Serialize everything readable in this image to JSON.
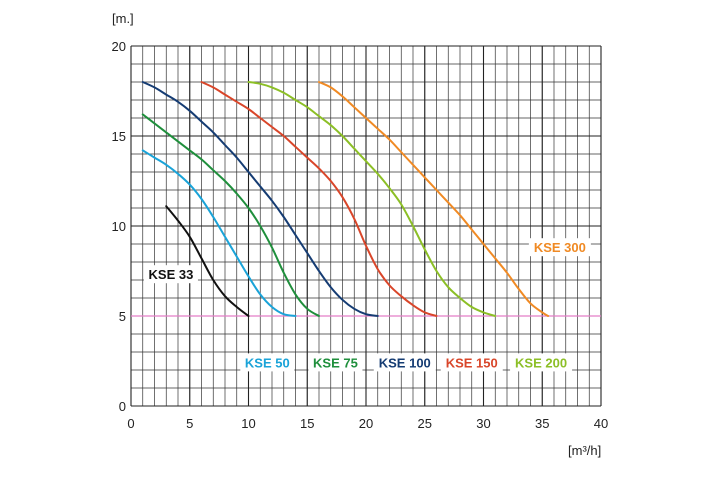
{
  "chart_data": {
    "type": "line",
    "title": "",
    "ylabel": "[m.]",
    "xlabel": "[m³/h]",
    "xlim": [
      0,
      40
    ],
    "ylim": [
      0,
      20
    ],
    "xticks": [
      0,
      5,
      10,
      15,
      20,
      25,
      30,
      35,
      40
    ],
    "yticks": [
      0,
      5,
      10,
      15,
      20
    ],
    "x_minor_step": 1,
    "y_minor_step": 1,
    "grid": true,
    "reference_line": {
      "y": 5,
      "color": "#e37ec8"
    },
    "series": [
      {
        "name": "KSE 33",
        "color": "#111111",
        "points": [
          [
            3,
            11.1
          ],
          [
            4,
            10.3
          ],
          [
            5,
            9.4
          ],
          [
            6,
            8.2
          ],
          [
            7,
            7.0
          ],
          [
            8,
            6.1
          ],
          [
            9,
            5.5
          ],
          [
            10,
            5.0
          ]
        ]
      },
      {
        "name": "KSE 50",
        "color": "#1aa3d8",
        "points": [
          [
            1,
            14.2
          ],
          [
            2,
            13.8
          ],
          [
            3,
            13.4
          ],
          [
            4,
            12.9
          ],
          [
            5,
            12.3
          ],
          [
            6,
            11.5
          ],
          [
            7,
            10.5
          ],
          [
            8,
            9.4
          ],
          [
            9,
            8.3
          ],
          [
            10,
            7.2
          ],
          [
            11,
            6.2
          ],
          [
            12,
            5.5
          ],
          [
            13,
            5.1
          ],
          [
            14,
            5.0
          ]
        ]
      },
      {
        "name": "KSE 75",
        "color": "#1f8f3c",
        "points": [
          [
            1,
            16.2
          ],
          [
            2,
            15.7
          ],
          [
            3,
            15.2
          ],
          [
            4,
            14.7
          ],
          [
            5,
            14.2
          ],
          [
            6,
            13.7
          ],
          [
            7,
            13.1
          ],
          [
            8,
            12.5
          ],
          [
            9,
            11.8
          ],
          [
            10,
            11.0
          ],
          [
            11,
            10.0
          ],
          [
            12,
            8.8
          ],
          [
            13,
            7.4
          ],
          [
            14,
            6.2
          ],
          [
            15,
            5.4
          ],
          [
            16,
            5.0
          ]
        ]
      },
      {
        "name": "KSE 100",
        "color": "#153c73",
        "points": [
          [
            1,
            18.0
          ],
          [
            2,
            17.7
          ],
          [
            3,
            17.3
          ],
          [
            4,
            16.9
          ],
          [
            5,
            16.4
          ],
          [
            6,
            15.8
          ],
          [
            7,
            15.2
          ],
          [
            8,
            14.5
          ],
          [
            9,
            13.8
          ],
          [
            10,
            13.0
          ],
          [
            11,
            12.2
          ],
          [
            12,
            11.4
          ],
          [
            13,
            10.5
          ],
          [
            14,
            9.5
          ],
          [
            15,
            8.5
          ],
          [
            16,
            7.5
          ],
          [
            17,
            6.6
          ],
          [
            18,
            5.9
          ],
          [
            19,
            5.4
          ],
          [
            20,
            5.1
          ],
          [
            21,
            5.0
          ]
        ]
      },
      {
        "name": "KSE 150",
        "color": "#d9462a",
        "points": [
          [
            6,
            18.0
          ],
          [
            7,
            17.7
          ],
          [
            8,
            17.3
          ],
          [
            9,
            16.9
          ],
          [
            10,
            16.5
          ],
          [
            11,
            16.0
          ],
          [
            12,
            15.5
          ],
          [
            13,
            15.0
          ],
          [
            14,
            14.4
          ],
          [
            15,
            13.8
          ],
          [
            16,
            13.2
          ],
          [
            17,
            12.5
          ],
          [
            18,
            11.6
          ],
          [
            19,
            10.4
          ],
          [
            20,
            8.9
          ],
          [
            21,
            7.6
          ],
          [
            22,
            6.7
          ],
          [
            23,
            6.1
          ],
          [
            24,
            5.6
          ],
          [
            25,
            5.2
          ],
          [
            26,
            5.0
          ]
        ]
      },
      {
        "name": "KSE 200",
        "color": "#8cbf26",
        "points": [
          [
            10,
            18.0
          ],
          [
            11,
            17.9
          ],
          [
            12,
            17.7
          ],
          [
            13,
            17.4
          ],
          [
            14,
            17.0
          ],
          [
            15,
            16.6
          ],
          [
            16,
            16.1
          ],
          [
            17,
            15.6
          ],
          [
            18,
            15.0
          ],
          [
            19,
            14.3
          ],
          [
            20,
            13.6
          ],
          [
            21,
            12.9
          ],
          [
            22,
            12.1
          ],
          [
            23,
            11.2
          ],
          [
            24,
            10.0
          ],
          [
            25,
            8.7
          ],
          [
            26,
            7.5
          ],
          [
            27,
            6.6
          ],
          [
            28,
            6.0
          ],
          [
            29,
            5.5
          ],
          [
            30,
            5.2
          ],
          [
            31,
            5.0
          ]
        ]
      },
      {
        "name": "KSE 300",
        "color": "#f08a24",
        "points": [
          [
            16,
            18.0
          ],
          [
            17,
            17.7
          ],
          [
            18,
            17.2
          ],
          [
            19,
            16.6
          ],
          [
            20,
            16.0
          ],
          [
            21,
            15.4
          ],
          [
            22,
            14.8
          ],
          [
            23,
            14.1
          ],
          [
            24,
            13.4
          ],
          [
            25,
            12.7
          ],
          [
            26,
            12.0
          ],
          [
            27,
            11.3
          ],
          [
            28,
            10.6
          ],
          [
            29,
            9.8
          ],
          [
            30,
            9.0
          ],
          [
            31,
            8.2
          ],
          [
            32,
            7.4
          ],
          [
            33,
            6.5
          ],
          [
            34,
            5.7
          ],
          [
            35,
            5.2
          ],
          [
            35.5,
            5.0
          ]
        ]
      }
    ]
  }
}
